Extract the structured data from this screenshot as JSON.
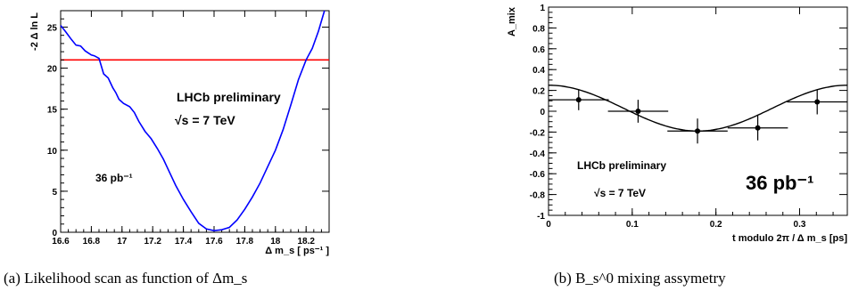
{
  "chart_data": [
    {
      "type": "line",
      "xlabel": "Δ m_s [ ps⁻¹ ]",
      "ylabel": "-2 Δ ln L",
      "xlim": [
        16.6,
        18.35
      ],
      "ylim": [
        0,
        27
      ],
      "xticks": [
        16.6,
        16.8,
        17.0,
        17.2,
        17.4,
        17.6,
        17.8,
        18.0,
        18.2
      ],
      "xtick_labels": [
        "16.6",
        "16.8",
        "17",
        "17.2",
        "17.4",
        "17.6",
        "17.8",
        "18",
        "18.2"
      ],
      "yticks": [
        0,
        5,
        10,
        15,
        20,
        25
      ],
      "ytick_labels": [
        "0",
        "5",
        "10",
        "15",
        "20",
        "25"
      ],
      "line_color": "#0000ff",
      "threshold": {
        "value": 21,
        "color": "#ff0000"
      },
      "series": [
        {
          "x": [
            16.6,
            16.63,
            16.67,
            16.7,
            16.73,
            16.76,
            16.8,
            16.82,
            16.85,
            16.88,
            16.91,
            16.94,
            16.96,
            16.98,
            17.01,
            17.05,
            17.08,
            17.11,
            17.15,
            17.19,
            17.23,
            17.27,
            17.31,
            17.35,
            17.4,
            17.45,
            17.5,
            17.55,
            17.6,
            17.65,
            17.7,
            17.75,
            17.8,
            17.85,
            17.9,
            17.95,
            18.0,
            18.05,
            18.1,
            18.15,
            18.2,
            18.24,
            18.28,
            18.32
          ],
          "y": [
            25.2,
            24.5,
            23.5,
            22.8,
            22.7,
            22.1,
            21.6,
            21.5,
            21.2,
            19.3,
            18.8,
            17.6,
            17.0,
            16.2,
            15.7,
            15.3,
            14.6,
            13.5,
            12.3,
            11.4,
            10.2,
            8.9,
            7.3,
            5.7,
            4.0,
            2.5,
            1.1,
            0.4,
            0.2,
            0.3,
            0.6,
            1.5,
            2.8,
            4.3,
            6.0,
            8.0,
            10.0,
            12.5,
            15.5,
            18.6,
            21.0,
            22.4,
            24.5,
            27.0
          ]
        }
      ],
      "annotations": [
        "LHCb preliminary",
        "√s = 7 TeV",
        "36 pb⁻¹"
      ]
    },
    {
      "type": "scatter",
      "xlabel": "t modulo 2π / Δ m_s [ps]",
      "ylabel": "A_mix",
      "xlim": [
        0,
        0.357
      ],
      "ylim": [
        -1,
        1
      ],
      "xticks": [
        0,
        0.1,
        0.2,
        0.3
      ],
      "xtick_labels": [
        "0",
        "0.1",
        "0.2",
        "0.3"
      ],
      "yticks": [
        -1,
        -0.8,
        -0.6,
        -0.4,
        -0.2,
        0,
        0.2,
        0.4,
        0.6,
        0.8,
        1
      ],
      "ytick_labels": [
        "-1",
        "-0.8",
        "-0.6",
        "-0.4",
        "-0.2",
        "0",
        "0.2",
        "0.4",
        "0.6",
        "0.8",
        "1"
      ],
      "points": [
        {
          "x": 0.036,
          "y": 0.11,
          "xerr": 0.036,
          "yerr": 0.1
        },
        {
          "x": 0.107,
          "y": 0.0,
          "xerr": 0.036,
          "yerr": 0.11
        },
        {
          "x": 0.178,
          "y": -0.19,
          "xerr": 0.036,
          "yerr": 0.12
        },
        {
          "x": 0.25,
          "y": -0.16,
          "xerr": 0.036,
          "yerr": 0.12
        },
        {
          "x": 0.321,
          "y": 0.09,
          "xerr": 0.036,
          "yerr": 0.12
        }
      ],
      "fit": {
        "amplitude": 0.22,
        "offset": 0.03,
        "period": 0.357
      },
      "annotations": [
        "LHCb preliminary",
        "√s = 7 TeV",
        "36 pb⁻¹"
      ]
    }
  ],
  "captions": {
    "a": "(a) Likelihood scan as function of Δm_s",
    "b": "(b) B_s^0 mixing assymetry"
  }
}
